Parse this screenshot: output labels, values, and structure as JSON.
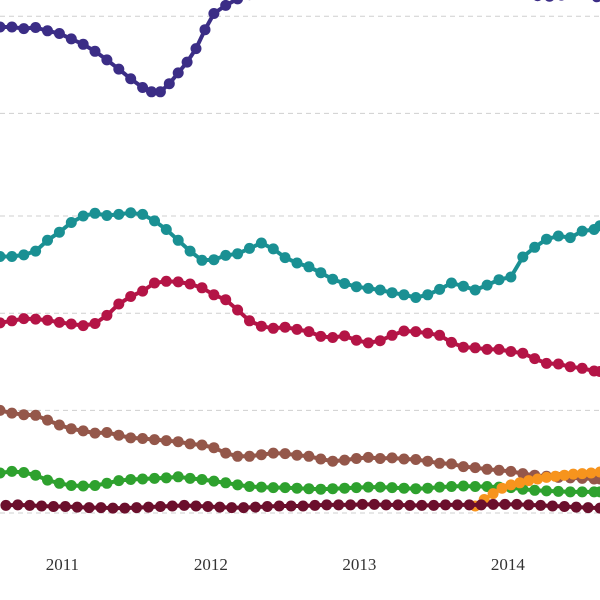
{
  "chart_data": {
    "type": "line",
    "title": "",
    "xlabel": "",
    "ylabel": "",
    "grid": true,
    "legend": "none",
    "xlim": [
      2010.58,
      2014.62
    ],
    "ylim": [
      0,
      100
    ],
    "x_ticks": [
      {
        "value": 2011,
        "label": "2011"
      },
      {
        "value": 2012,
        "label": "2012"
      },
      {
        "value": 2013,
        "label": "2013"
      },
      {
        "value": 2014,
        "label": "2014"
      }
    ],
    "y_gridlines": [
      5,
      24,
      42,
      60,
      79,
      97
    ],
    "series": [
      {
        "color": "#3b2d86",
        "x": [
          2010.58,
          2010.66,
          2010.74,
          2010.82,
          2010.9,
          2010.98,
          2011.06,
          2011.14,
          2011.22,
          2011.3,
          2011.38,
          2011.46,
          2011.54,
          2011.6,
          2011.66,
          2011.72,
          2011.78,
          2011.84,
          2011.9,
          2011.96,
          2012.02,
          2012.1,
          2012.18,
          2012.26,
          2012.34,
          2012.42,
          2012.5,
          2012.58,
          2012.66,
          2014.05,
          2014.12,
          2014.2,
          2014.28,
          2014.36,
          2014.44,
          2014.52,
          2014.6
        ],
        "y": [
          95,
          95,
          94.7,
          94.9,
          94.3,
          93.8,
          92.8,
          91.8,
          90.5,
          88.9,
          87.2,
          85.4,
          83.8,
          83,
          83,
          84.5,
          86.5,
          88.5,
          91,
          94.5,
          97.5,
          99,
          100.2,
          101,
          101.7,
          101.3,
          101.6,
          102.5,
          103.5,
          103.5,
          102,
          100.8,
          100.7,
          100.9,
          101.6,
          101.8,
          100.6
        ]
      },
      {
        "color": "#1a9093",
        "x": [
          2010.58,
          2010.66,
          2010.74,
          2010.82,
          2010.9,
          2010.98,
          2011.06,
          2011.14,
          2011.22,
          2011.3,
          2011.38,
          2011.46,
          2011.54,
          2011.62,
          2011.7,
          2011.78,
          2011.86,
          2011.94,
          2012.02,
          2012.1,
          2012.18,
          2012.26,
          2012.34,
          2012.42,
          2012.5,
          2012.58,
          2012.66,
          2012.74,
          2012.82,
          2012.9,
          2012.98,
          2013.06,
          2013.14,
          2013.22,
          2013.3,
          2013.38,
          2013.46,
          2013.54,
          2013.62,
          2013.7,
          2013.78,
          2013.86,
          2013.94,
          2014.02,
          2014.1,
          2014.18,
          2014.26,
          2014.34,
          2014.42,
          2014.5,
          2014.58,
          2014.62
        ],
        "y": [
          52.5,
          52.5,
          52.8,
          53.5,
          55.5,
          57,
          58.8,
          60,
          60.5,
          60.1,
          60.3,
          60.6,
          60.3,
          59.1,
          57.5,
          55.5,
          53.5,
          51.8,
          51.9,
          52.7,
          53,
          54,
          55,
          53.9,
          52.3,
          51.3,
          50.6,
          49.5,
          48.3,
          47.5,
          46.9,
          46.6,
          46.3,
          45.8,
          45.4,
          44.9,
          45.4,
          46.4,
          47.6,
          47,
          46.3,
          47.2,
          48.2,
          48.7,
          52.4,
          54.2,
          55.7,
          56.3,
          56,
          57.2,
          57.5,
          58.2
        ]
      },
      {
        "color": "#b41446",
        "x": [
          2010.58,
          2010.66,
          2010.74,
          2010.82,
          2010.9,
          2010.98,
          2011.06,
          2011.14,
          2011.22,
          2011.3,
          2011.38,
          2011.46,
          2011.54,
          2011.62,
          2011.7,
          2011.78,
          2011.86,
          2011.94,
          2012.02,
          2012.1,
          2012.18,
          2012.26,
          2012.34,
          2012.42,
          2012.5,
          2012.58,
          2012.66,
          2012.74,
          2012.82,
          2012.9,
          2012.98,
          2013.06,
          2013.14,
          2013.22,
          2013.3,
          2013.38,
          2013.46,
          2013.54,
          2013.62,
          2013.7,
          2013.78,
          2013.86,
          2013.94,
          2014.02,
          2014.1,
          2014.18,
          2014.26,
          2014.34,
          2014.42,
          2014.5,
          2014.58,
          2014.62
        ],
        "y": [
          40.2,
          40.6,
          41,
          40.9,
          40.7,
          40.3,
          40,
          39.7,
          40.1,
          41.6,
          43.7,
          45.1,
          46.1,
          47.6,
          47.9,
          47.8,
          47.4,
          46.7,
          45.4,
          44.5,
          42.6,
          40.6,
          39.6,
          39.2,
          39.4,
          39,
          38.6,
          37.7,
          37.5,
          37.8,
          37,
          36.5,
          36.9,
          37.9,
          38.7,
          38.6,
          38.3,
          37.9,
          36.6,
          35.7,
          35.6,
          35.3,
          35.3,
          34.9,
          34.6,
          33.6,
          32.7,
          32.6,
          32.1,
          31.8,
          31.3,
          31.2
        ]
      },
      {
        "color": "#94574a",
        "x": [
          2010.58,
          2010.66,
          2010.74,
          2010.82,
          2010.9,
          2010.98,
          2011.06,
          2011.14,
          2011.22,
          2011.3,
          2011.38,
          2011.46,
          2011.54,
          2011.62,
          2011.7,
          2011.78,
          2011.86,
          2011.94,
          2012.02,
          2012.1,
          2012.18,
          2012.26,
          2012.34,
          2012.42,
          2012.5,
          2012.58,
          2012.66,
          2012.74,
          2012.82,
          2012.9,
          2012.98,
          2013.06,
          2013.14,
          2013.22,
          2013.3,
          2013.38,
          2013.46,
          2013.54,
          2013.62,
          2013.7,
          2013.78,
          2013.86,
          2013.94,
          2014.02,
          2014.1,
          2014.18,
          2014.26,
          2014.34,
          2014.42,
          2014.5,
          2014.58,
          2014.62
        ],
        "y": [
          24,
          23.5,
          23.2,
          23.1,
          22.2,
          21.3,
          20.6,
          20.2,
          19.8,
          19.9,
          19.4,
          18.9,
          18.8,
          18.6,
          18.4,
          18.2,
          17.8,
          17.6,
          17.1,
          16.1,
          15.5,
          15.5,
          15.8,
          16.1,
          16,
          15.7,
          15.5,
          15,
          14.6,
          14.8,
          15.1,
          15.3,
          15.1,
          15.2,
          15,
          14.9,
          14.6,
          14.2,
          14.1,
          13.6,
          13.4,
          13.1,
          12.9,
          12.7,
          12.3,
          12,
          11.8,
          11.6,
          11.5,
          11.4,
          11.3,
          11.3
        ]
      },
      {
        "color": "#2ea12e",
        "x": [
          2010.58,
          2010.66,
          2010.74,
          2010.82,
          2010.9,
          2010.98,
          2011.06,
          2011.14,
          2011.22,
          2011.3,
          2011.38,
          2011.46,
          2011.54,
          2011.62,
          2011.7,
          2011.78,
          2011.86,
          2011.94,
          2012.02,
          2012.1,
          2012.18,
          2012.26,
          2012.34,
          2012.42,
          2012.5,
          2012.58,
          2012.66,
          2012.74,
          2012.82,
          2012.9,
          2012.98,
          2013.06,
          2013.14,
          2013.22,
          2013.3,
          2013.38,
          2013.46,
          2013.54,
          2013.62,
          2013.7,
          2013.78,
          2013.86,
          2013.94,
          2014.02,
          2014.1,
          2014.18,
          2014.26,
          2014.34,
          2014.42,
          2014.5,
          2014.58,
          2014.62
        ],
        "y": [
          12.4,
          12.7,
          12.5,
          12,
          11.1,
          10.5,
          10.1,
          10,
          10.1,
          10.5,
          11,
          11.2,
          11.3,
          11.4,
          11.5,
          11.7,
          11.4,
          11.2,
          10.9,
          10.6,
          10.2,
          9.9,
          9.8,
          9.7,
          9.7,
          9.6,
          9.5,
          9.4,
          9.5,
          9.6,
          9.7,
          9.8,
          9.8,
          9.7,
          9.6,
          9.5,
          9.6,
          9.8,
          9.9,
          10,
          9.9,
          9.9,
          9.8,
          9.7,
          9.4,
          9.2,
          9.1,
          9,
          8.9,
          8.9,
          8.9,
          8.9
        ]
      },
      {
        "color": "#f7941d",
        "x": [
          2013.78,
          2013.84,
          2013.9,
          2013.96,
          2014.02,
          2014.08,
          2014.14,
          2014.2,
          2014.26,
          2014.32,
          2014.38,
          2014.44,
          2014.5,
          2014.56,
          2014.62
        ],
        "y": [
          6.3,
          7.5,
          8.6,
          9.6,
          10.2,
          10.6,
          11,
          11.3,
          11.6,
          11.8,
          12,
          12.2,
          12.3,
          12.4,
          12.6
        ]
      },
      {
        "color": "#6b0f2c",
        "x": [
          2010.62,
          2010.7,
          2010.78,
          2010.86,
          2010.94,
          2011.02,
          2011.1,
          2011.18,
          2011.26,
          2011.34,
          2011.42,
          2011.5,
          2011.58,
          2011.66,
          2011.74,
          2011.82,
          2011.9,
          2011.98,
          2012.06,
          2012.14,
          2012.22,
          2012.3,
          2012.38,
          2012.46,
          2012.54,
          2012.62,
          2012.7,
          2012.78,
          2012.86,
          2012.94,
          2013.02,
          2013.1,
          2013.18,
          2013.26,
          2013.34,
          2013.42,
          2013.5,
          2013.58,
          2013.66,
          2013.74,
          2013.82,
          2013.9,
          2013.98,
          2014.06,
          2014.14,
          2014.22,
          2014.3,
          2014.38,
          2014.46,
          2014.54,
          2014.62
        ],
        "y": [
          6.4,
          6.5,
          6.4,
          6.3,
          6.2,
          6.2,
          6.1,
          6,
          6,
          5.9,
          5.9,
          6,
          6.1,
          6.2,
          6.3,
          6.4,
          6.3,
          6.2,
          6.1,
          6,
          6,
          6.1,
          6.2,
          6.3,
          6.3,
          6.3,
          6.4,
          6.5,
          6.5,
          6.5,
          6.6,
          6.6,
          6.5,
          6.5,
          6.4,
          6.4,
          6.4,
          6.5,
          6.5,
          6.5,
          6.5,
          6.6,
          6.6,
          6.6,
          6.5,
          6.4,
          6.3,
          6.2,
          6.1,
          6,
          5.9
        ]
      }
    ]
  }
}
